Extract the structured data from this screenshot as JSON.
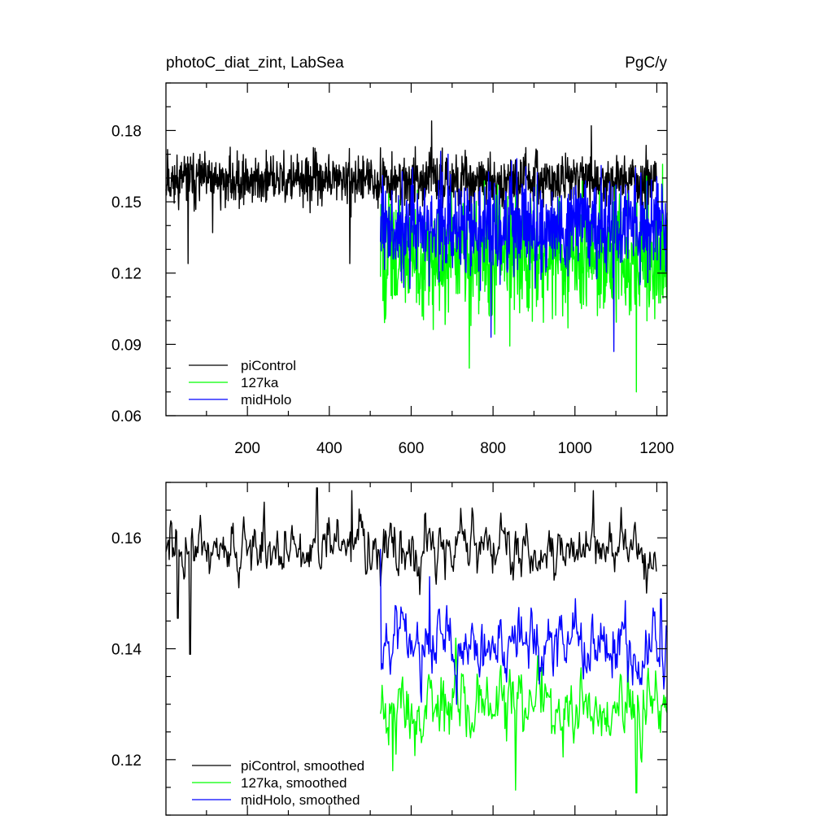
{
  "chart_data": [
    {
      "type": "line",
      "title": "photoC_diat_zint, LabSea",
      "units": "PgC/y",
      "xlabel": "",
      "ylabel": "",
      "xlim": [
        1,
        1225
      ],
      "ylim": [
        0.06,
        0.2
      ],
      "x_ticks": [
        200,
        400,
        600,
        800,
        1000,
        1200
      ],
      "y_ticks": [
        0.06,
        0.09,
        0.12,
        0.15,
        0.18
      ],
      "x_tick_labels": [
        "200",
        "400",
        "600",
        "800",
        "1000",
        "1200"
      ],
      "y_tick_labels": [
        "0.06",
        "0.09",
        "0.12",
        "0.15",
        "0.18"
      ],
      "grid": false,
      "legend_position": "bottom-left",
      "series": [
        {
          "name": "piControl",
          "color": "#000000",
          "x_range": [
            1,
            1200
          ],
          "mean": 0.159,
          "noise": 0.0075,
          "spikes": [
            [
              5,
              0.172
            ],
            [
              55,
              0.124
            ],
            [
              115,
              0.137
            ],
            [
              450,
              0.124
            ],
            [
              650,
              0.184
            ],
            [
              1040,
              0.182
            ]
          ]
        },
        {
          "name": "127ka",
          "color": "#00ff00",
          "x_range": [
            525,
            1225
          ],
          "mean": 0.127,
          "noise": 0.018,
          "spikes": [
            [
              742,
              0.08
            ],
            [
              1150,
              0.07
            ]
          ]
        },
        {
          "name": "midHolo",
          "color": "#0000ff",
          "x_range": [
            525,
            1225
          ],
          "mean": 0.14,
          "noise": 0.015,
          "spikes": [
            [
              690,
              0.17
            ],
            [
              795,
              0.093
            ],
            [
              1095,
              0.087
            ]
          ]
        }
      ]
    },
    {
      "type": "line",
      "title": "",
      "xlabel": "",
      "ylabel": "",
      "xlim": [
        1,
        1225
      ],
      "ylim": [
        0.11,
        0.17
      ],
      "x_ticks": [
        200,
        400,
        600,
        800,
        1000,
        1200
      ],
      "y_ticks": [
        0.12,
        0.14,
        0.16
      ],
      "y_tick_labels": [
        "0.12",
        "0.14",
        "0.16"
      ],
      "grid": false,
      "legend_position": "bottom-left",
      "series": [
        {
          "name": "piControl, smoothed",
          "color": "#000000",
          "x_range": [
            1,
            1200
          ],
          "mean": 0.1585,
          "noise": 0.0035,
          "spikes": [
            [
              30,
              0.1455
            ],
            [
              60,
              0.139
            ],
            [
              370,
              0.169
            ],
            [
              455,
              0.1685
            ],
            [
              1045,
              0.1685
            ]
          ]
        },
        {
          "name": "127ka, smoothed",
          "color": "#00ff00",
          "x_range": [
            525,
            1225
          ],
          "mean": 0.1295,
          "noise": 0.0045,
          "spikes": [
            [
              555,
              0.118
            ],
            [
              855,
              0.1145
            ],
            [
              1150,
              0.114
            ]
          ]
        },
        {
          "name": "midHolo, smoothed",
          "color": "#0000ff",
          "x_range": [
            525,
            1225
          ],
          "mean": 0.1405,
          "noise": 0.0045,
          "spikes": [
            [
              525,
              0.158
            ],
            [
              645,
              0.153
            ],
            [
              1210,
              0.149
            ]
          ]
        }
      ]
    }
  ]
}
